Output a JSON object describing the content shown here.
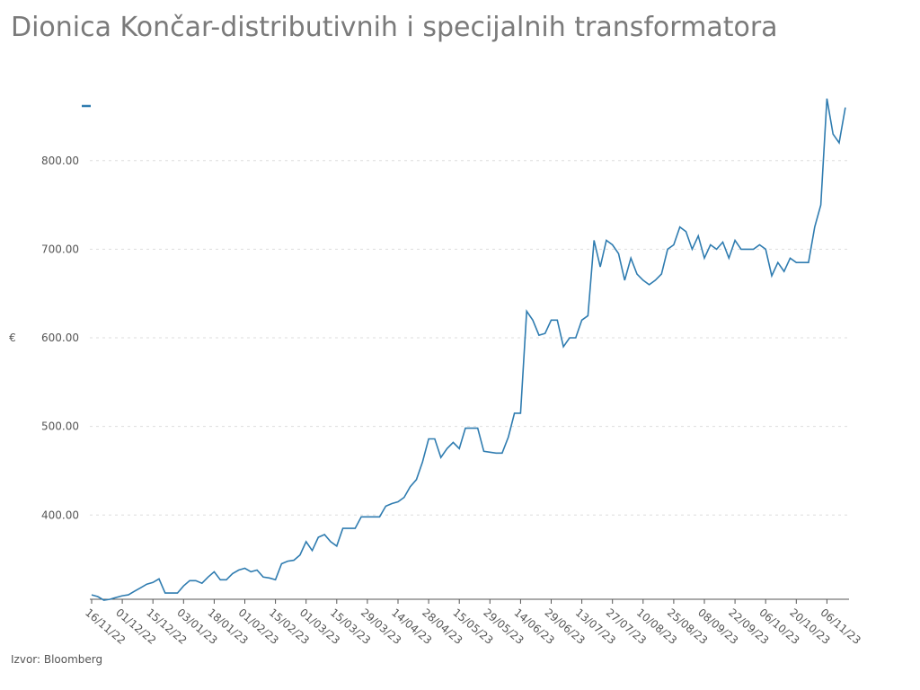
{
  "chart_data": {
    "type": "line",
    "title": "Dionica Končar-distributivnih i specijalnih transformatora",
    "y_label": "€",
    "source": "Izvor: Bloomberg",
    "categories": [
      "16/11/22",
      null,
      null,
      null,
      null,
      "01/12/22",
      null,
      null,
      null,
      null,
      "15/12/22",
      null,
      null,
      null,
      null,
      "03/01/23",
      null,
      null,
      null,
      null,
      "18/01/23",
      null,
      null,
      null,
      null,
      "01/02/23",
      null,
      null,
      null,
      null,
      "15/02/23",
      null,
      null,
      null,
      null,
      "01/03/23",
      null,
      null,
      null,
      null,
      "15/03/23",
      null,
      null,
      null,
      null,
      "29/03/23",
      null,
      null,
      null,
      null,
      "14/04/23",
      null,
      null,
      null,
      null,
      "28/04/23",
      null,
      null,
      null,
      null,
      "15/05/23",
      null,
      null,
      null,
      null,
      "29/05/23",
      null,
      null,
      null,
      null,
      "14/06/23",
      null,
      null,
      null,
      null,
      "29/06/23",
      null,
      null,
      null,
      null,
      "13/07/23",
      null,
      null,
      null,
      null,
      "27/07/23",
      null,
      null,
      null,
      null,
      "10/08/23",
      null,
      null,
      null,
      null,
      "25/08/23",
      null,
      null,
      null,
      null,
      "08/09/23",
      null,
      null,
      null,
      null,
      "22/09/23",
      null,
      null,
      null,
      null,
      "06/10/23",
      null,
      null,
      null,
      null,
      "20/10/23",
      null,
      null,
      null,
      null,
      "06/11/23",
      null,
      null,
      null
    ],
    "series": [
      {
        "color": "#2f7cb0",
        "values": [
          310,
          308,
          304,
          305,
          307,
          309,
          310,
          314,
          318,
          322,
          324,
          328,
          312,
          312,
          312,
          320,
          326,
          326,
          323,
          330,
          336,
          327,
          327,
          334,
          338,
          340,
          336,
          338,
          330,
          329,
          327,
          345,
          348,
          349,
          355,
          370,
          360,
          375,
          378,
          370,
          365,
          385,
          385,
          385,
          398,
          398,
          398,
          398,
          410,
          413,
          415,
          420,
          432,
          440,
          460,
          486,
          486,
          465,
          475,
          482,
          475,
          498,
          498,
          498,
          472,
          471,
          470,
          470,
          488,
          515,
          515,
          630,
          620,
          603,
          605,
          620,
          620,
          590,
          600,
          600,
          620,
          625,
          710,
          680,
          710,
          705,
          695,
          665,
          690,
          672,
          665,
          660,
          665,
          672,
          700,
          705,
          725,
          720,
          700,
          715,
          690,
          705,
          700,
          708,
          690,
          710,
          700,
          700,
          700,
          705,
          700,
          670,
          685,
          675,
          690,
          685,
          685,
          685,
          725,
          750,
          870,
          830,
          820,
          860
        ]
      }
    ],
    "ylim": [
      305,
      890
    ],
    "yticks": [
      {
        "value": 400,
        "label": "400.00"
      },
      {
        "value": 500,
        "label": "500.00"
      },
      {
        "value": 600,
        "label": "600.00"
      },
      {
        "value": 700,
        "label": "700.00"
      },
      {
        "value": 800,
        "label": "800.00"
      }
    ],
    "grid": true
  }
}
